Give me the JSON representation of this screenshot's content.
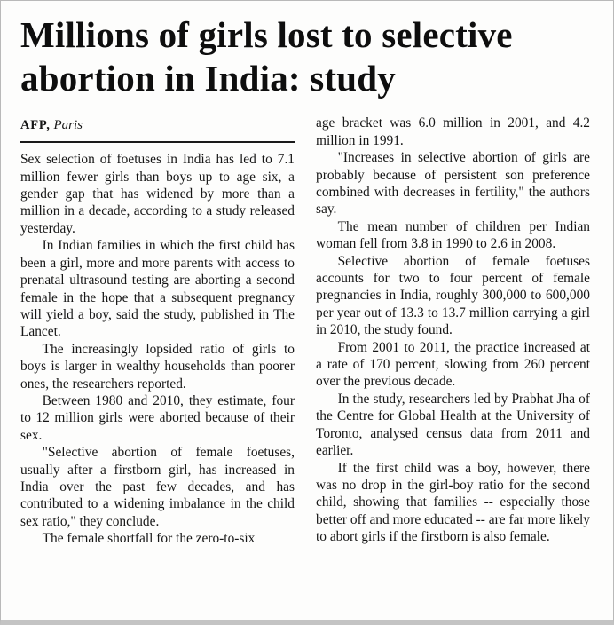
{
  "article": {
    "title": "Millions of girls lost to selective abortion in India: study",
    "byline": {
      "agency": "AFP,",
      "location": " Paris"
    },
    "columns": {
      "left": [
        "Sex selection of foetuses in India has led to 7.1 million fewer girls than boys up to age six, a gender gap that has widened by more than a million in a decade, according to a study released yesterday.",
        "In Indian families in which the first child has been a girl, more and more parents with access to prenatal ultrasound testing are aborting a second female in the hope that a subsequent pregnancy will yield a boy, said the study, published in The Lancet.",
        "The increasingly lopsided ratio of girls to boys is larger in wealthy households than poorer ones, the researchers reported.",
        "Between 1980 and 2010, they estimate, four to 12 million girls were aborted because of their sex.",
        "\"Selective abortion of female foetuses, usually after a firstborn girl, has increased in India over the past few decades, and has contributed to a widening imbalance in the child sex ratio,\" they conclude.",
        "The female shortfall for the zero-to-six"
      ],
      "right": [
        "age bracket was 6.0 million in 2001, and 4.2 million in 1991.",
        "\"Increases in selective abortion of girls are probably because of persistent son preference combined with decreases in fertility,\" the authors say.",
        "The mean number of children per Indian woman fell from 3.8 in 1990 to 2.6 in 2008.",
        "Selective abortion of female foetuses accounts for two to four percent of female pregnancies in India, roughly 300,000 to 600,000 per year out of 13.3 to 13.7 million carrying a girl in 2010, the study found.",
        "From 2001 to 2011, the practice increased at a rate of 170 percent, slowing from 260 percent over the previous decade.",
        "In the study, researchers led by Prabhat Jha of the Centre for Global Health at the University of Toronto, analysed census data from 2011 and earlier.",
        "If the first child was a boy, however, there was no drop in the girl-boy ratio for the second child, showing that families -- especially those better off and more educated -- are far more likely to abort girls if the firstborn is also female."
      ]
    }
  }
}
